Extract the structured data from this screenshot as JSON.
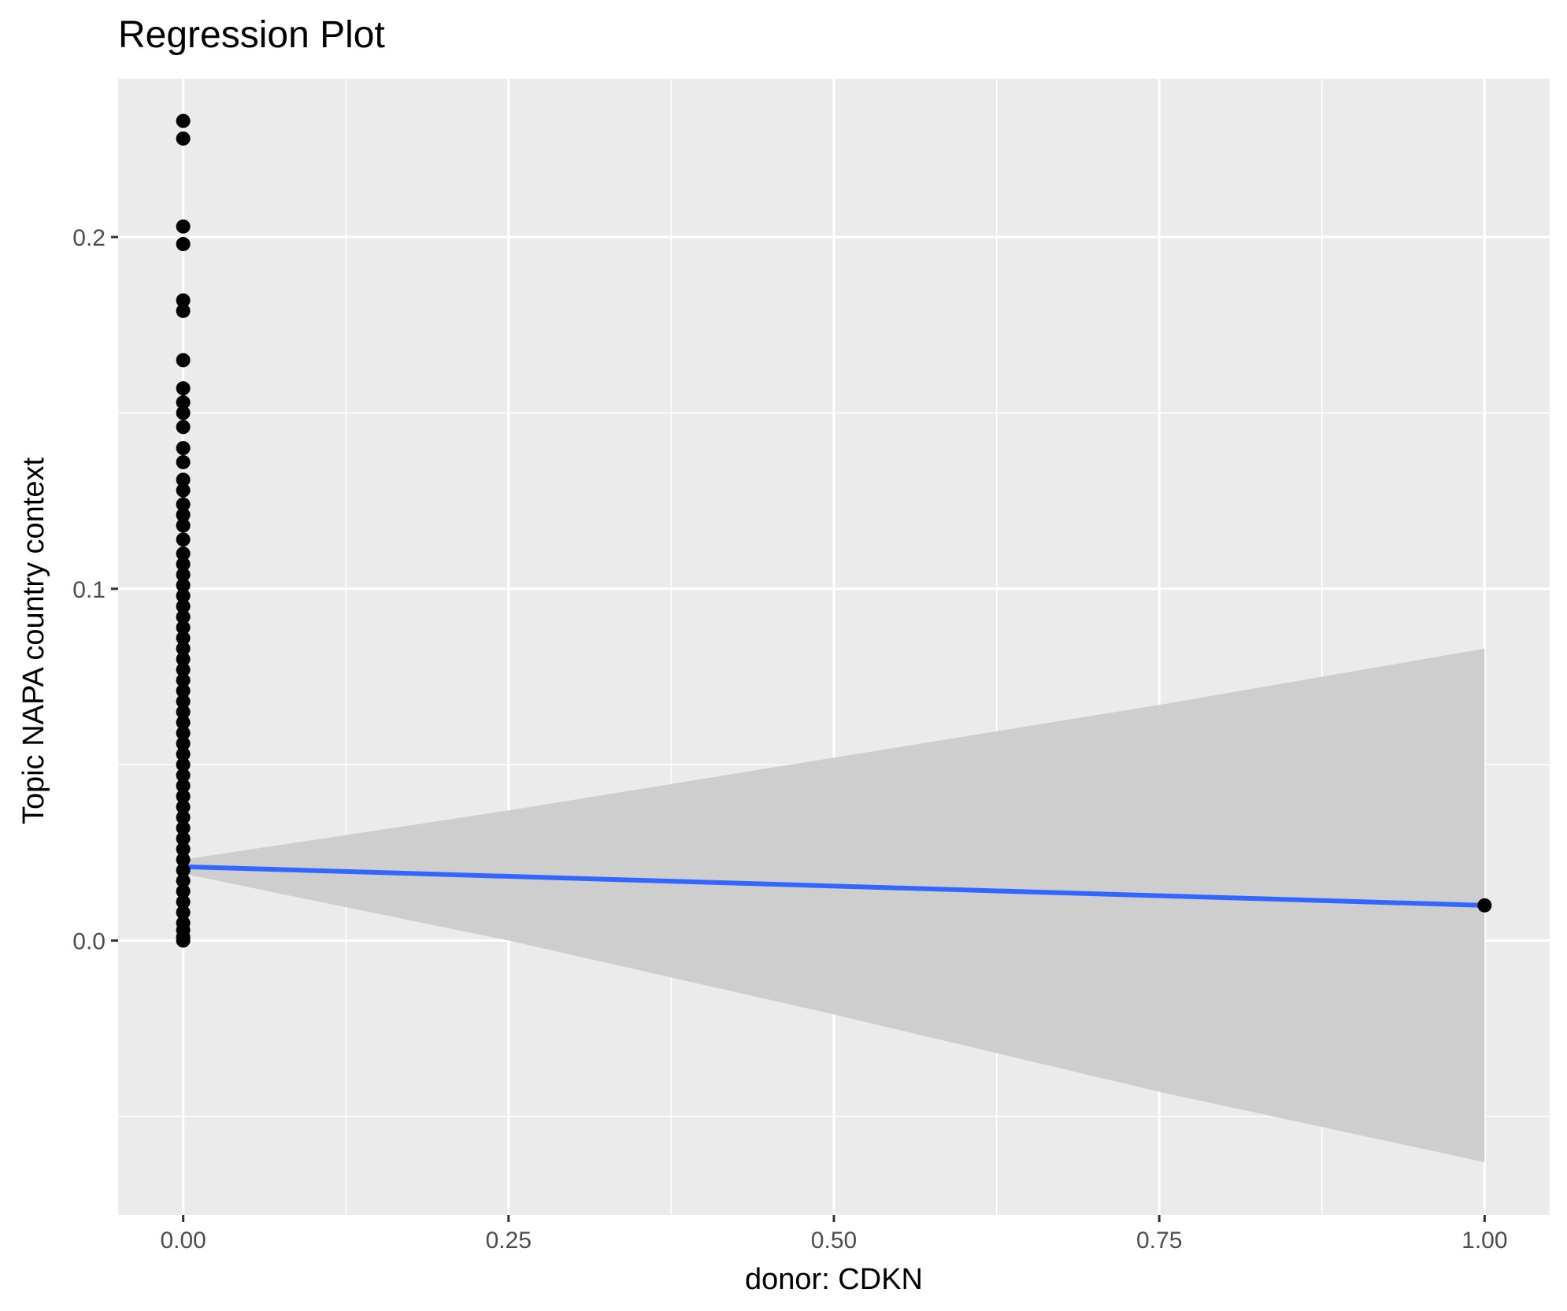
{
  "chart_data": {
    "type": "scatter",
    "title": "Regression Plot",
    "xlabel": "donor: CDKN",
    "ylabel": "Topic NAPA country context",
    "xlim": [
      -0.05,
      1.05
    ],
    "ylim": [
      -0.078,
      0.245
    ],
    "x_ticks": [
      0.0,
      0.25,
      0.5,
      0.75,
      1.0
    ],
    "x_tick_labels": [
      "0.00",
      "0.25",
      "0.50",
      "0.75",
      "1.00"
    ],
    "y_ticks": [
      0.0,
      0.1,
      0.2
    ],
    "y_tick_labels": [
      "0.0",
      "0.1",
      "0.2"
    ],
    "grid": true,
    "points": [
      {
        "x": 0,
        "y": 0.233
      },
      {
        "x": 0,
        "y": 0.228
      },
      {
        "x": 0,
        "y": 0.203
      },
      {
        "x": 0,
        "y": 0.198
      },
      {
        "x": 0,
        "y": 0.182
      },
      {
        "x": 0,
        "y": 0.179
      },
      {
        "x": 0,
        "y": 0.165
      },
      {
        "x": 0,
        "y": 0.157
      },
      {
        "x": 0,
        "y": 0.153
      },
      {
        "x": 0,
        "y": 0.15
      },
      {
        "x": 0,
        "y": 0.146
      },
      {
        "x": 0,
        "y": 0.14
      },
      {
        "x": 0,
        "y": 0.136
      },
      {
        "x": 0,
        "y": 0.131
      },
      {
        "x": 0,
        "y": 0.128
      },
      {
        "x": 0,
        "y": 0.124
      },
      {
        "x": 0,
        "y": 0.121
      },
      {
        "x": 0,
        "y": 0.118
      },
      {
        "x": 0,
        "y": 0.114
      },
      {
        "x": 0,
        "y": 0.11
      },
      {
        "x": 0,
        "y": 0.107
      },
      {
        "x": 0,
        "y": 0.104
      },
      {
        "x": 0,
        "y": 0.101
      },
      {
        "x": 0,
        "y": 0.098
      },
      {
        "x": 0,
        "y": 0.095
      },
      {
        "x": 0,
        "y": 0.092
      },
      {
        "x": 0,
        "y": 0.089
      },
      {
        "x": 0,
        "y": 0.086
      },
      {
        "x": 0,
        "y": 0.083
      },
      {
        "x": 0,
        "y": 0.08
      },
      {
        "x": 0,
        "y": 0.077
      },
      {
        "x": 0,
        "y": 0.074
      },
      {
        "x": 0,
        "y": 0.071
      },
      {
        "x": 0,
        "y": 0.068
      },
      {
        "x": 0,
        "y": 0.065
      },
      {
        "x": 0,
        "y": 0.062
      },
      {
        "x": 0,
        "y": 0.059
      },
      {
        "x": 0,
        "y": 0.056
      },
      {
        "x": 0,
        "y": 0.053
      },
      {
        "x": 0,
        "y": 0.05
      },
      {
        "x": 0,
        "y": 0.047
      },
      {
        "x": 0,
        "y": 0.044
      },
      {
        "x": 0,
        "y": 0.041
      },
      {
        "x": 0,
        "y": 0.038
      },
      {
        "x": 0,
        "y": 0.035
      },
      {
        "x": 0,
        "y": 0.032
      },
      {
        "x": 0,
        "y": 0.029
      },
      {
        "x": 0,
        "y": 0.026
      },
      {
        "x": 0,
        "y": 0.023
      },
      {
        "x": 0,
        "y": 0.02
      },
      {
        "x": 0,
        "y": 0.017
      },
      {
        "x": 0,
        "y": 0.014
      },
      {
        "x": 0,
        "y": 0.011
      },
      {
        "x": 0,
        "y": 0.008
      },
      {
        "x": 0,
        "y": 0.005
      },
      {
        "x": 0,
        "y": 0.003
      },
      {
        "x": 0,
        "y": 0.001
      },
      {
        "x": 0,
        "y": 0.0
      },
      {
        "x": 1,
        "y": 0.01
      }
    ],
    "regression": {
      "x": [
        0,
        1
      ],
      "y": [
        0.021,
        0.01
      ],
      "color": "#3366ff"
    },
    "confidence_band": {
      "x": [
        0,
        0.25,
        0.5,
        0.75,
        1.0
      ],
      "lower": [
        0.019,
        0.0,
        -0.021,
        -0.043,
        -0.063
      ],
      "upper": [
        0.023,
        0.037,
        0.052,
        0.067,
        0.083
      ]
    },
    "colors": {
      "panel": "#ebebeb",
      "grid_major": "#ffffff",
      "band": "#cccccc",
      "points": "#000000",
      "line": "#3366ff"
    }
  }
}
